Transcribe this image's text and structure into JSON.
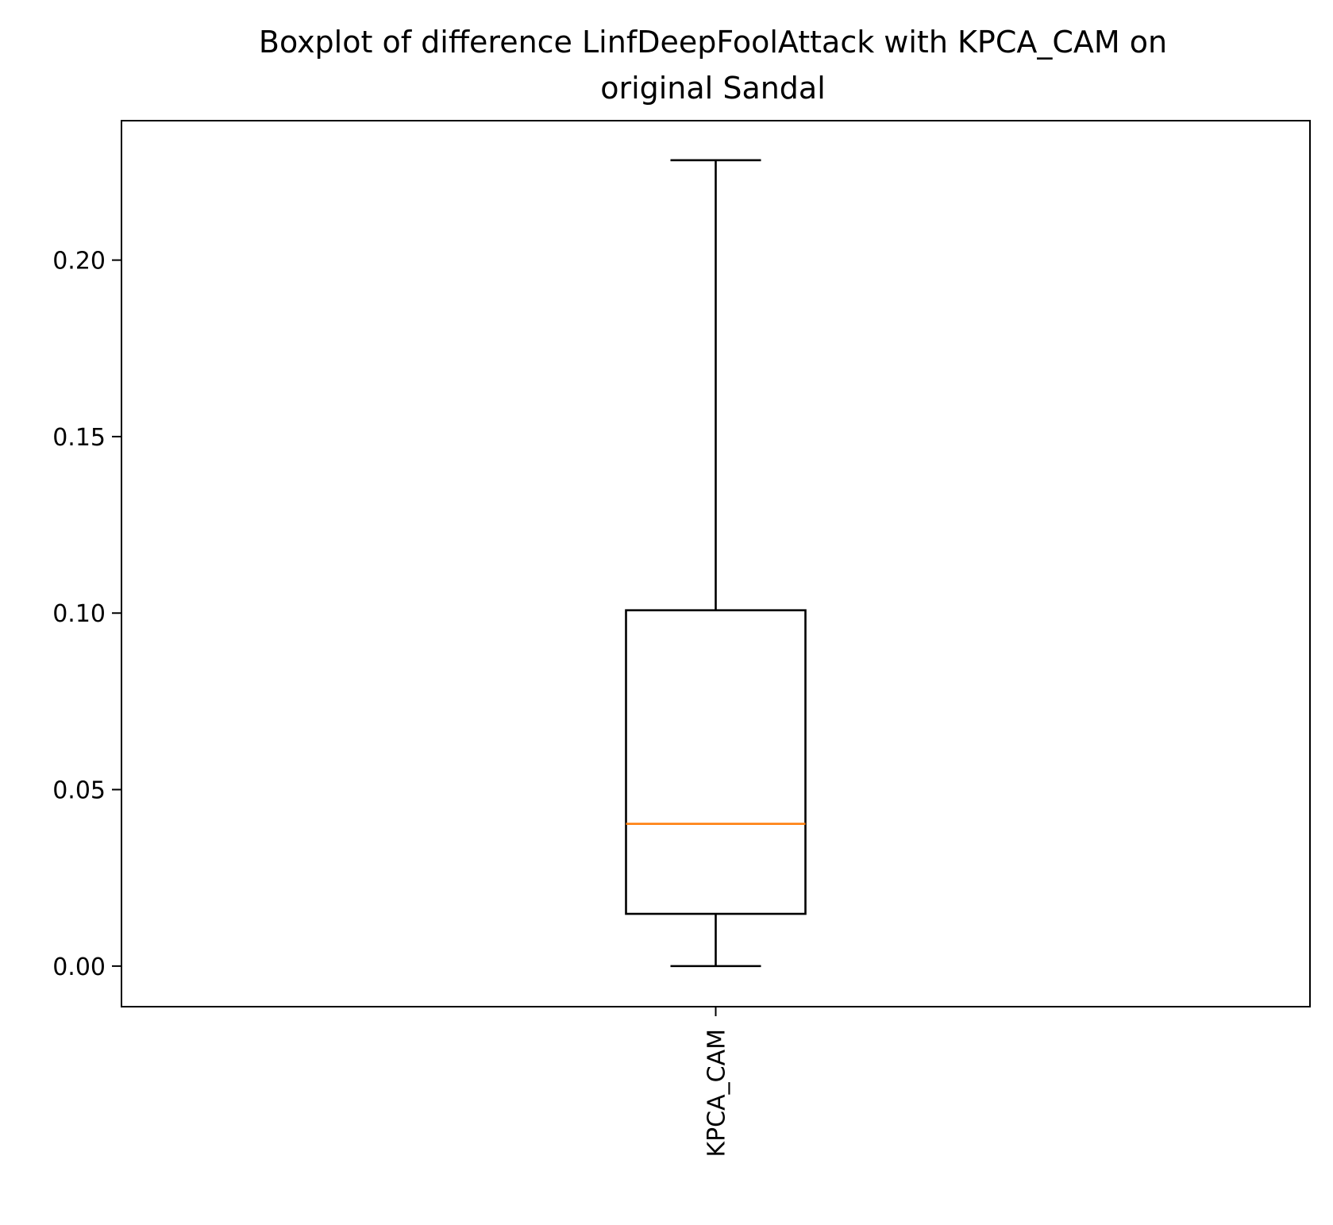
{
  "chart_data": {
    "type": "boxplot",
    "title": "Boxplot of difference LinfDeepFoolAttack with KPCA_CAM on original Sandal",
    "title_lines": [
      "Boxplot of difference LinfDeepFoolAttack with KPCA_CAM on",
      "original Sandal"
    ],
    "xlabel": "",
    "ylabel": "",
    "categories": [
      "KPCA_CAM"
    ],
    "x_tick_rotation": 90,
    "ylim": [
      -0.0115,
      0.2395
    ],
    "y_ticks": [
      0.0,
      0.05,
      0.1,
      0.15,
      0.2
    ],
    "y_tick_labels": [
      "0.00",
      "0.05",
      "0.10",
      "0.15",
      "0.20"
    ],
    "grid": false,
    "boxes": [
      {
        "category": "KPCA_CAM",
        "whisker_low": 0.0,
        "q1": 0.0148,
        "median": 0.0403,
        "q3": 0.1008,
        "whisker_high": 0.2283
      }
    ],
    "colors": {
      "box": "#000000",
      "median": "#ff7f0e",
      "axes": "#000000",
      "background": "#ffffff"
    }
  }
}
